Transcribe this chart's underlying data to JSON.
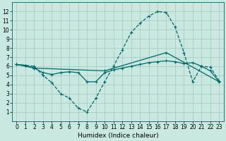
{
  "title": "",
  "xlabel": "Humidex (Indice chaleur)",
  "bg_color": "#c8e8e0",
  "grid_color": "#a8ccc8",
  "line_color": "#006868",
  "xlim": [
    -0.5,
    23.5
  ],
  "ylim": [
    0,
    13
  ],
  "xticks": [
    0,
    1,
    2,
    3,
    4,
    5,
    6,
    7,
    8,
    9,
    10,
    11,
    12,
    13,
    14,
    15,
    16,
    17,
    18,
    19,
    20,
    21,
    22,
    23
  ],
  "yticks": [
    1,
    2,
    3,
    4,
    5,
    6,
    7,
    8,
    9,
    10,
    11,
    12
  ],
  "line1_x": [
    0,
    1,
    2,
    3,
    4,
    5,
    6,
    7,
    8,
    9,
    10,
    11,
    12,
    13,
    14,
    15,
    16,
    17,
    18,
    19,
    20,
    21,
    22,
    23
  ],
  "line1_y": [
    6.2,
    6.1,
    6.0,
    5.0,
    4.2,
    3.0,
    2.5,
    1.4,
    1.0,
    2.5,
    4.3,
    6.0,
    7.8,
    9.7,
    10.7,
    11.5,
    12.0,
    11.9,
    10.3,
    7.5,
    4.3,
    6.0,
    5.9,
    4.4
  ],
  "line2_x": [
    0,
    1,
    2,
    3,
    4,
    5,
    6,
    7,
    8,
    9,
    10,
    11,
    12,
    13,
    14,
    15,
    16,
    17,
    18,
    19,
    20,
    21,
    22,
    23
  ],
  "line2_y": [
    6.2,
    6.1,
    5.8,
    5.3,
    5.1,
    5.3,
    5.4,
    5.3,
    4.3,
    4.3,
    5.3,
    5.6,
    5.8,
    6.0,
    6.2,
    6.4,
    6.5,
    6.6,
    6.5,
    6.3,
    6.4,
    6.0,
    5.5,
    4.3
  ],
  "line3_x": [
    0,
    2,
    10,
    17,
    23
  ],
  "line3_y": [
    6.2,
    5.8,
    5.5,
    7.5,
    4.3
  ],
  "tick_fontsize": 5.5,
  "xlabel_fontsize": 6.5
}
